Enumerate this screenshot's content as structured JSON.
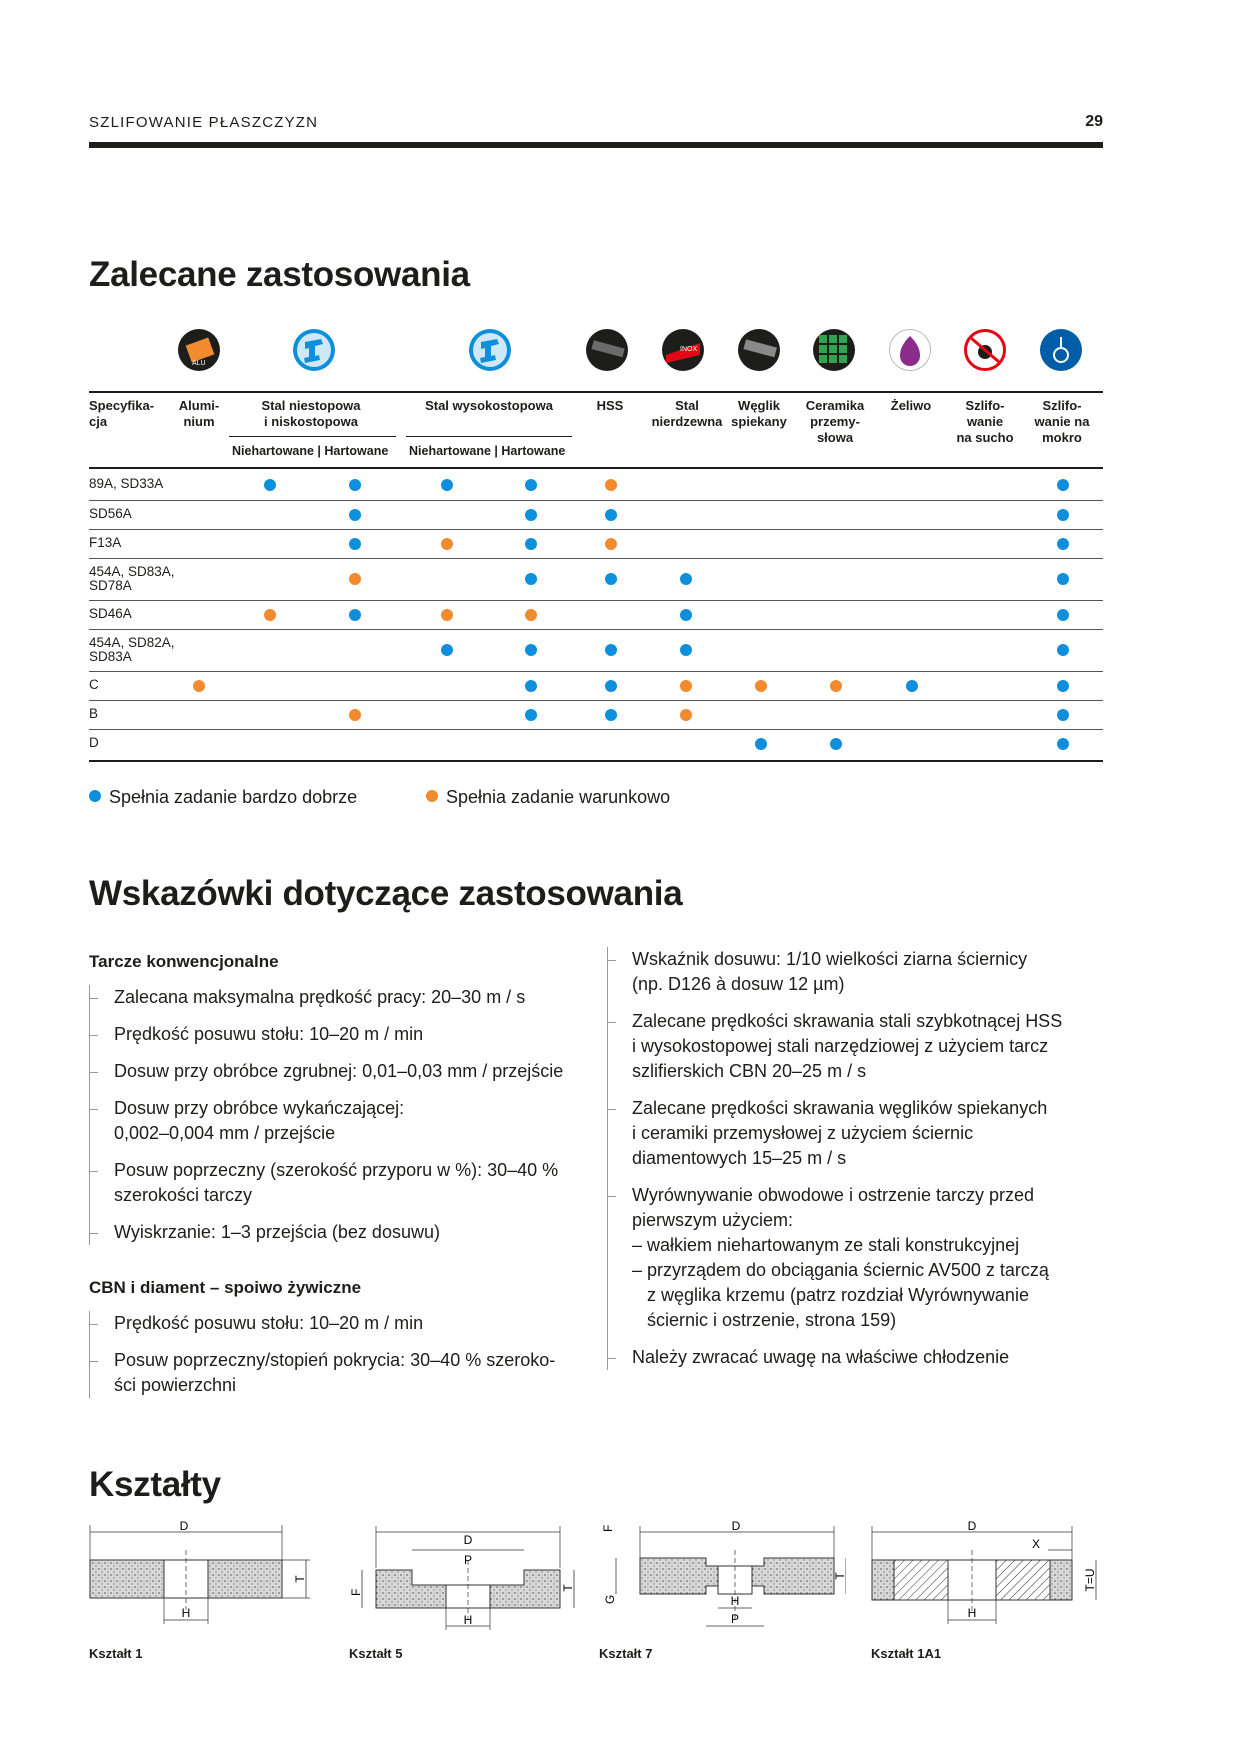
{
  "header": {
    "section": "SZLIFOWANIE PŁASZCZYZN",
    "page": "29"
  },
  "recommended": {
    "title": "Zalecane zastosowania",
    "spec_header": "Specyfika-\ncja",
    "columns": [
      {
        "label": "Alumi-\nnium",
        "icon": "aluminium-icon"
      },
      {
        "label": "Stal niestopowa\ni niskostopowa",
        "icon": "steel-beam-icon"
      },
      {
        "label": "Stal wysokostopowa",
        "icon": "steel-beam-icon"
      },
      {
        "label": "HSS",
        "icon": "hss-icon"
      },
      {
        "label": "Stal\nnierdzewna",
        "icon": "stainless-icon"
      },
      {
        "label": "Węglik\nspiekany",
        "icon": "carbide-icon"
      },
      {
        "label": "Ceramika\nprzemy-\nsłowa",
        "icon": "ceramic-icon"
      },
      {
        "label": "Żeliwo",
        "icon": "cast-iron-icon"
      },
      {
        "label": "Szlifo-\nwanie\nna sucho",
        "icon": "dry-grinding-icon"
      },
      {
        "label": "Szlifo-\nwanie na\nmokro",
        "icon": "wet-grinding-icon"
      }
    ],
    "sub_headers": [
      "Niehartowane | Hartowane",
      "Niehartowane | Hartowane"
    ],
    "rows": [
      {
        "spec": "89A, SD33A",
        "cells": [
          "",
          "b",
          "b",
          "b",
          "b",
          "o",
          "",
          "",
          "",
          "",
          "",
          "b"
        ]
      },
      {
        "spec": "SD56A",
        "cells": [
          "",
          "",
          "b",
          "",
          "b",
          "b",
          "",
          "",
          "",
          "",
          "",
          "b"
        ]
      },
      {
        "spec": "F13A",
        "cells": [
          "",
          "",
          "b",
          "o",
          "b",
          "o",
          "",
          "",
          "",
          "",
          "",
          "b"
        ]
      },
      {
        "spec": "454A, SD83A,\nSD78A",
        "cells": [
          "",
          "",
          "o",
          "",
          "b",
          "b",
          "b",
          "",
          "",
          "",
          "",
          "b"
        ]
      },
      {
        "spec": "SD46A",
        "cells": [
          "",
          "o",
          "b",
          "o",
          "o",
          "",
          "b",
          "",
          "",
          "",
          "",
          "b"
        ]
      },
      {
        "spec": "454A, SD82A,\nSD83A",
        "cells": [
          "",
          "",
          "",
          "b",
          "b",
          "b",
          "b",
          "",
          "",
          "",
          "",
          "b"
        ]
      },
      {
        "spec": "C",
        "cells": [
          "o",
          "",
          "",
          "",
          "b",
          "b",
          "o",
          "o",
          "o",
          "b",
          "",
          "b"
        ]
      },
      {
        "spec": "B",
        "cells": [
          "",
          "",
          "o",
          "",
          "b",
          "b",
          "o",
          "",
          "",
          "",
          "",
          "b"
        ]
      },
      {
        "spec": "D",
        "cells": [
          "",
          "",
          "",
          "",
          "",
          "",
          "",
          "b",
          "b",
          "",
          "",
          "b"
        ]
      }
    ],
    "legend": {
      "very_good": "Spełnia zadanie bardzo dobrze",
      "conditional": "Spełnia zadanie warunkowo"
    }
  },
  "guidance": {
    "title": "Wskazówki dotyczące zastosowania",
    "conventional_title": "Tarcze konwencjonalne",
    "conventional": [
      "Zalecana maksymalna prędkość pracy: 20–30 m / s",
      "Prędkość posuwu stołu: 10–20 m / min",
      "Dosuw przy obróbce zgrubnej: 0,01–0,03 mm / przejście",
      "Dosuw przy obróbce wykańczającej:\n0,002–0,004 mm / przejście",
      "Posuw poprzeczny (szerokość przyporu w %): 30–40 %\nszerokości tarczy",
      "Wyiskrzanie: 1–3 przejścia (bez dosuwu)"
    ],
    "cbn_title": "CBN i diament – spoiwo żywiczne",
    "cbn": [
      "Prędkość posuwu stołu: 10–20 m / min",
      "Posuw poprzeczny/stopień pokrycia: 30–40 % szeroko-\nści powierzchni"
    ],
    "right": [
      "Wskaźnik dosuwu: 1/10 wielkości ziarna ściernicy\n(np. D126 à dosuw 12 µm)",
      "Zalecane prędkości skrawania stali szybkotnącej HSS\ni wysokostopowej stali narzędziowej z użyciem tarcz\nszlifierskich CBN 20–25 m / s",
      "Zalecane prędkości skrawania węglików spiekanych\ni ceramiki przemysłowej z użyciem ściernic\ndiamentowych 15–25 m / s"
    ],
    "dressing": {
      "text": "Wyrównywanie obwodowe i ostrzenie tarczy przed\npierwszym użyciem:",
      "sub": [
        "– wałkiem niehartowanym ze stali konstrukcyjnej",
        "– przyrządem do obciągania ściernic AV500 z tarczą\nz węglika krzemu (patrz rozdział Wyrównywanie\nściernic i ostrzenie, strona 159)"
      ]
    },
    "cooling": "Należy zwracać uwagę na właściwe chłodzenie"
  },
  "shapes": {
    "title": "Kształty",
    "items": [
      {
        "label": "Kształt 1",
        "dims": [
          "D",
          "H",
          "T"
        ]
      },
      {
        "label": "Kształt 5",
        "dims": [
          "D",
          "P",
          "H",
          "F",
          "T"
        ]
      },
      {
        "label": "Kształt 7",
        "dims": [
          "D",
          "F",
          "G",
          "T",
          "H",
          "P"
        ]
      },
      {
        "label": "Kształt 1A1",
        "dims": [
          "D",
          "X",
          "H",
          "T=U"
        ]
      }
    ]
  }
}
